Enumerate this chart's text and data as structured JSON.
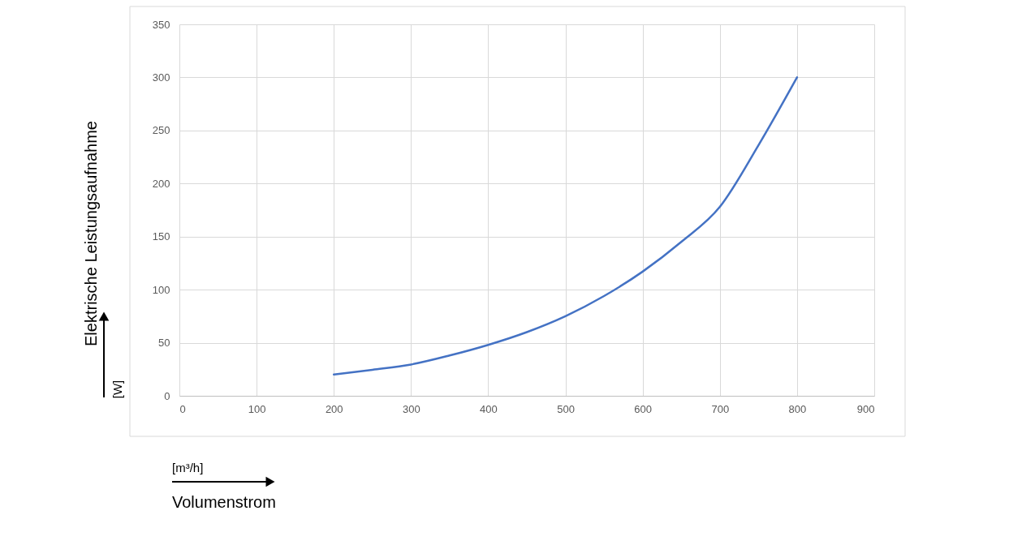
{
  "chart_data": {
    "type": "line",
    "xlabel": "Volumenstrom",
    "ylabel": "Elektrische Leistungsaufnahme",
    "annotations": [
      "[m³/h]",
      "[W]"
    ],
    "x": [
      200,
      250,
      300,
      350,
      400,
      450,
      500,
      550,
      600,
      650,
      700,
      750,
      800
    ],
    "series": [
      {
        "color": "#4472c4",
        "values": [
          20,
          24.5,
          29.5,
          38,
          48,
          60,
          75,
          94,
          117,
          145,
          178,
          236,
          300
        ]
      }
    ],
    "xlim": [
      0,
      900
    ],
    "xticks": [
      0,
      100,
      200,
      300,
      400,
      500,
      600,
      700,
      800,
      900
    ],
    "ylim": [
      0,
      350
    ],
    "yticks": [
      0,
      50,
      100,
      150,
      200,
      250,
      300,
      350
    ],
    "grid": true
  }
}
